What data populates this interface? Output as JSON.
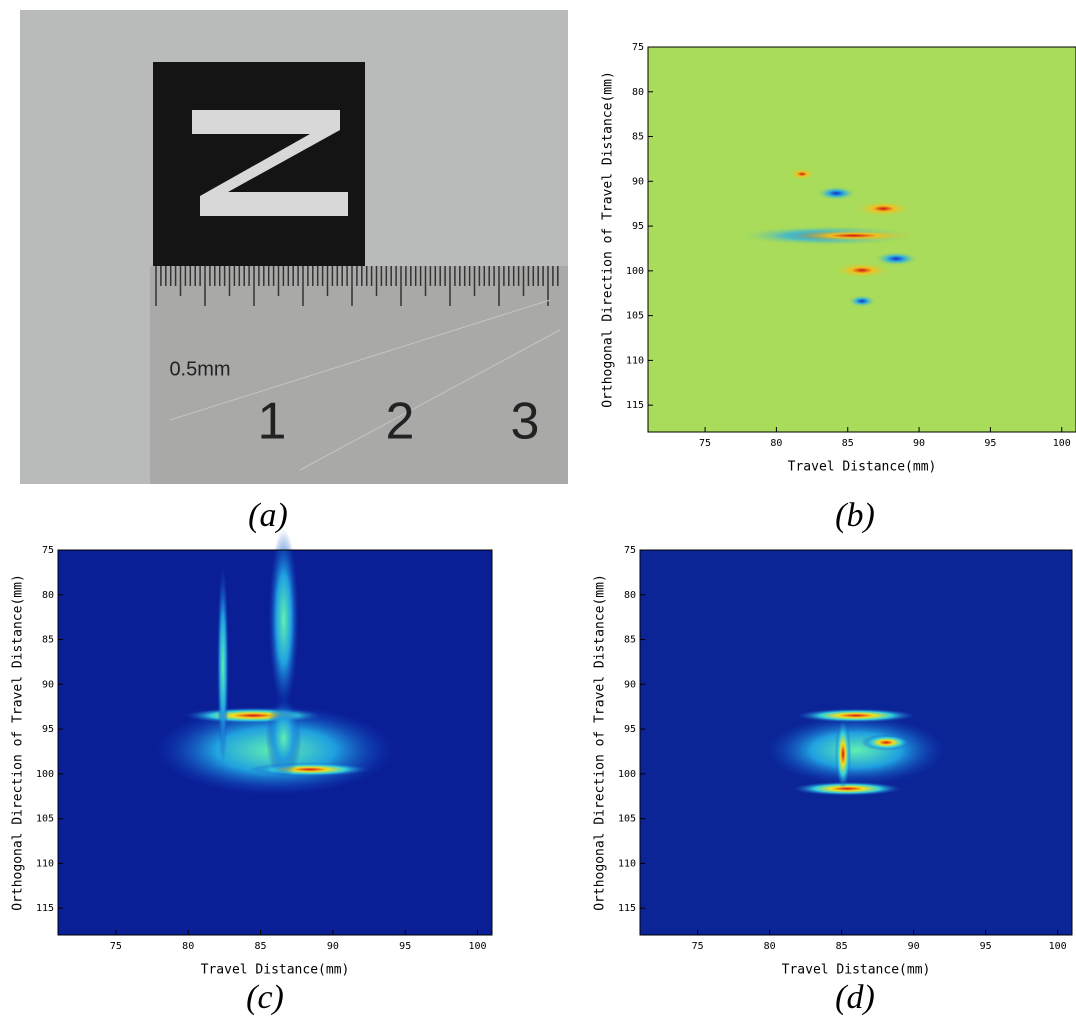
{
  "photo": {
    "caption": "(a)",
    "ruler_note": "0.5mm",
    "ruler_numbers": [
      "1",
      "2",
      "3"
    ]
  },
  "chart_data": [
    {
      "type": "heatmap",
      "caption": "(b)",
      "xlabel": "Travel Distance(mm)",
      "ylabel": "Orthogonal Direction of Travel Distance(mm)",
      "background": "#a8dc5a",
      "xlim": [
        71,
        101
      ],
      "ylim": [
        75,
        118
      ],
      "xticks": [
        75,
        80,
        85,
        90,
        95,
        100
      ],
      "yticks": [
        75,
        80,
        85,
        90,
        95,
        100,
        105,
        110,
        115
      ]
    },
    {
      "type": "heatmap",
      "caption": "(c)",
      "xlabel": "Travel Distance(mm)",
      "ylabel": "Orthogonal Direction of Travel Distance(mm)",
      "background": "#0a1e96",
      "xlim": [
        71,
        101
      ],
      "ylim": [
        75,
        118
      ],
      "xticks": [
        75,
        80,
        85,
        90,
        95,
        100
      ],
      "yticks": [
        75,
        80,
        85,
        90,
        95,
        100,
        105,
        110,
        115
      ]
    },
    {
      "type": "heatmap",
      "caption": "(d)",
      "xlabel": "Travel Distance(mm)",
      "ylabel": "Orthogonal Direction of Travel Distance(mm)",
      "background": "#0b2496",
      "xlim": [
        71,
        101
      ],
      "ylim": [
        75,
        118
      ],
      "xticks": [
        75,
        80,
        85,
        90,
        95,
        100
      ],
      "yticks": [
        75,
        80,
        85,
        90,
        95,
        100,
        105,
        110,
        115
      ]
    }
  ]
}
